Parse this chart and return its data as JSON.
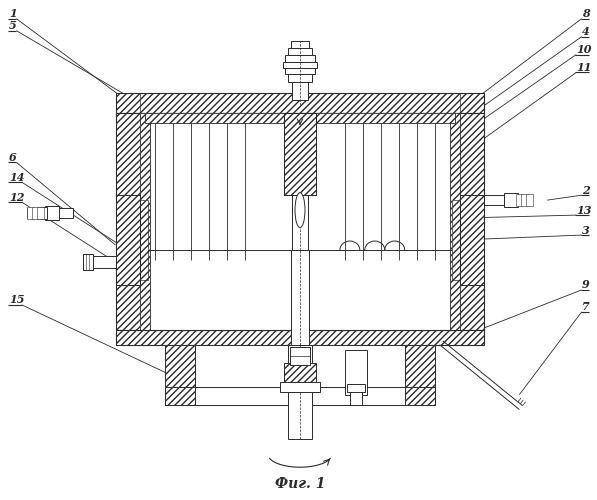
{
  "background_color": "#ffffff",
  "line_color": "#2a2a2a",
  "caption": "Фиг. 1",
  "figsize": [
    5.97,
    5.0
  ],
  "dpi": 100
}
